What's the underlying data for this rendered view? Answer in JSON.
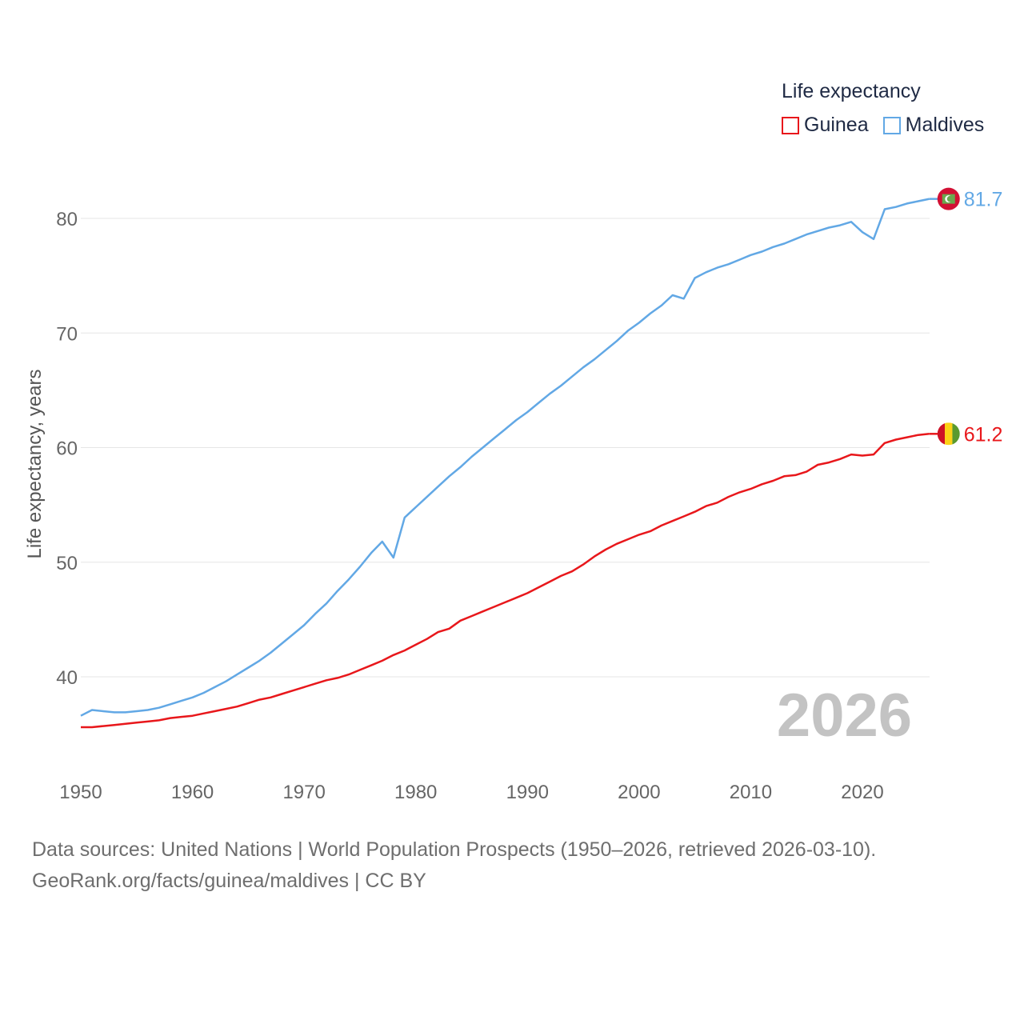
{
  "chart_data": {
    "type": "line",
    "title": "",
    "legend_title": "Life expectancy",
    "ylabel": "Life expectancy, years",
    "xlabel": "",
    "xlim": [
      1950,
      2026
    ],
    "ylim": [
      34,
      85
    ],
    "x_ticks": [
      "1950",
      "1960",
      "1970",
      "1980",
      "1990",
      "2000",
      "2010",
      "2020"
    ],
    "y_ticks": [
      "40",
      "50",
      "60",
      "70",
      "80"
    ],
    "year_watermark": "2026",
    "series": [
      {
        "name": "Guinea",
        "color": "#e8171b",
        "end_label": "61.2",
        "x": [
          1950,
          1951,
          1952,
          1953,
          1954,
          1955,
          1956,
          1957,
          1958,
          1959,
          1960,
          1961,
          1962,
          1963,
          1964,
          1965,
          1966,
          1967,
          1968,
          1969,
          1970,
          1971,
          1972,
          1973,
          1974,
          1975,
          1976,
          1977,
          1978,
          1979,
          1980,
          1981,
          1982,
          1983,
          1984,
          1985,
          1986,
          1987,
          1988,
          1989,
          1990,
          1991,
          1992,
          1993,
          1994,
          1995,
          1996,
          1997,
          1998,
          1999,
          2000,
          2001,
          2002,
          2003,
          2004,
          2005,
          2006,
          2007,
          2008,
          2009,
          2010,
          2011,
          2012,
          2013,
          2014,
          2015,
          2016,
          2017,
          2018,
          2019,
          2020,
          2021,
          2022,
          2023,
          2024,
          2025,
          2026
        ],
        "values": [
          35.6,
          35.6,
          35.7,
          35.8,
          35.9,
          36.0,
          36.1,
          36.2,
          36.4,
          36.5,
          36.6,
          36.8,
          37.0,
          37.2,
          37.4,
          37.7,
          38.0,
          38.2,
          38.5,
          38.8,
          39.1,
          39.4,
          39.7,
          39.9,
          40.2,
          40.6,
          41.0,
          41.4,
          41.9,
          42.3,
          42.8,
          43.3,
          43.9,
          44.2,
          44.9,
          45.3,
          45.7,
          46.1,
          46.5,
          46.9,
          47.3,
          47.8,
          48.3,
          48.8,
          49.2,
          49.8,
          50.5,
          51.1,
          51.6,
          52.0,
          52.4,
          52.7,
          53.2,
          53.6,
          54.0,
          54.4,
          54.9,
          55.2,
          55.7,
          56.1,
          56.4,
          56.8,
          57.1,
          57.5,
          57.6,
          57.9,
          58.5,
          58.7,
          59.0,
          59.4,
          59.3,
          59.4,
          60.4,
          60.7,
          60.9,
          61.1,
          61.2
        ]
      },
      {
        "name": "Maldives",
        "color": "#62a8e5",
        "end_label": "81.7",
        "x": [
          1950,
          1951,
          1952,
          1953,
          1954,
          1955,
          1956,
          1957,
          1958,
          1959,
          1960,
          1961,
          1962,
          1963,
          1964,
          1965,
          1966,
          1967,
          1968,
          1969,
          1970,
          1971,
          1972,
          1973,
          1974,
          1975,
          1976,
          1977,
          1978,
          1979,
          1980,
          1981,
          1982,
          1983,
          1984,
          1985,
          1986,
          1987,
          1988,
          1989,
          1990,
          1991,
          1992,
          1993,
          1994,
          1995,
          1996,
          1997,
          1998,
          1999,
          2000,
          2001,
          2002,
          2003,
          2004,
          2005,
          2006,
          2007,
          2008,
          2009,
          2010,
          2011,
          2012,
          2013,
          2014,
          2015,
          2016,
          2017,
          2018,
          2019,
          2020,
          2021,
          2022,
          2023,
          2024,
          2025,
          2026
        ],
        "values": [
          36.6,
          37.1,
          37.0,
          36.9,
          36.9,
          37.0,
          37.1,
          37.3,
          37.6,
          37.9,
          38.2,
          38.6,
          39.1,
          39.6,
          40.2,
          40.8,
          41.4,
          42.1,
          42.9,
          43.7,
          44.5,
          45.5,
          46.4,
          47.5,
          48.5,
          49.6,
          50.8,
          51.8,
          50.4,
          53.9,
          54.8,
          55.7,
          56.6,
          57.5,
          58.3,
          59.2,
          60.0,
          60.8,
          61.6,
          62.4,
          63.1,
          63.9,
          64.7,
          65.4,
          66.2,
          67.0,
          67.7,
          68.5,
          69.3,
          70.2,
          70.9,
          71.7,
          72.4,
          73.3,
          73.0,
          74.8,
          75.3,
          75.7,
          76.0,
          76.4,
          76.8,
          77.1,
          77.5,
          77.8,
          78.2,
          78.6,
          78.9,
          79.2,
          79.4,
          79.7,
          78.8,
          78.2,
          80.8,
          81.0,
          81.3,
          81.5,
          81.7
        ]
      }
    ]
  },
  "footer": {
    "line1": "Data sources: United Nations | World Population Prospects (1950–2026, retrieved 2026-03-10).",
    "line2": "GeoRank.org/facts/guinea/maldives | CC BY"
  }
}
